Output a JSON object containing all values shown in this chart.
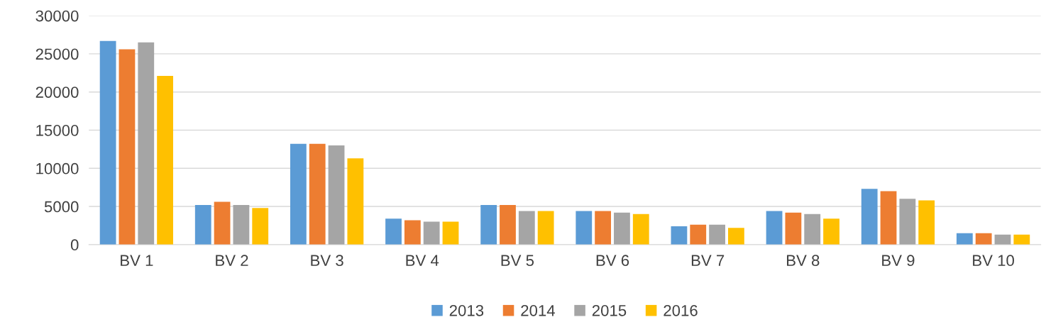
{
  "chart_data": {
    "type": "bar",
    "categories": [
      "BV 1",
      "BV 2",
      "BV 3",
      "BV 4",
      "BV 5",
      "BV 6",
      "BV 7",
      "BV 8",
      "BV 9",
      "BV 10"
    ],
    "series": [
      {
        "name": "2013",
        "color": "#5b9bd5",
        "values": [
          26700,
          5200,
          13200,
          3400,
          5200,
          4400,
          2400,
          4400,
          7300,
          1500
        ]
      },
      {
        "name": "2014",
        "color": "#ed7d31",
        "values": [
          25600,
          5600,
          13200,
          3200,
          5200,
          4400,
          2600,
          4200,
          7000,
          1500
        ]
      },
      {
        "name": "2015",
        "color": "#a5a5a5",
        "values": [
          26500,
          5200,
          13000,
          3000,
          4400,
          4200,
          2600,
          4000,
          6000,
          1300
        ]
      },
      {
        "name": "2016",
        "color": "#ffc000",
        "values": [
          22100,
          4800,
          11300,
          3000,
          4400,
          4000,
          2200,
          3400,
          5800,
          1300
        ]
      }
    ],
    "ylim": [
      0,
      30000
    ],
    "yticks": [
      0,
      5000,
      10000,
      15000,
      20000,
      25000,
      30000
    ],
    "grid": "y",
    "legend": "bottom"
  }
}
